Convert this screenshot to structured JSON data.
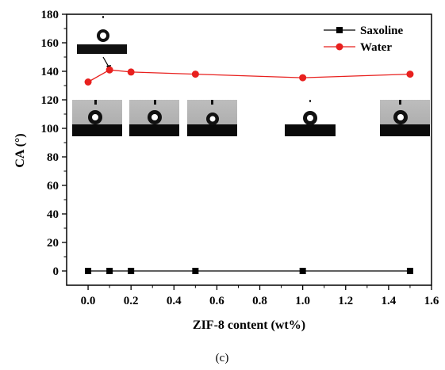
{
  "chart_data": {
    "type": "line",
    "xlabel": "ZIF-8 content (wt%)",
    "ylabel": "CA (°)",
    "xlim": [
      -0.1,
      1.6
    ],
    "ylim": [
      -10,
      180
    ],
    "xticks": [
      "0.0",
      "0.2",
      "0.4",
      "0.6",
      "0.8",
      "1.0",
      "1.2",
      "1.4",
      "1.6"
    ],
    "yticks": [
      "0",
      "20",
      "40",
      "60",
      "80",
      "100",
      "120",
      "140",
      "160",
      "180"
    ],
    "series": [
      {
        "name": "Saxoline",
        "marker": "square",
        "color": "#000000",
        "x": [
          0.0,
          0.1,
          0.2,
          0.5,
          1.0,
          1.5
        ],
        "y": [
          0,
          0,
          0,
          0,
          0,
          0
        ]
      },
      {
        "name": "Water",
        "marker": "circle",
        "color": "#e8201e",
        "x": [
          0.0,
          0.1,
          0.2,
          0.5,
          1.0,
          1.5
        ],
        "y": [
          132.5,
          141,
          139.5,
          138,
          135.5,
          138
        ]
      }
    ],
    "legend_position": "top-right",
    "grid": false,
    "insets": "water droplet contact-angle photographs above each data point"
  },
  "caption": "(c)"
}
